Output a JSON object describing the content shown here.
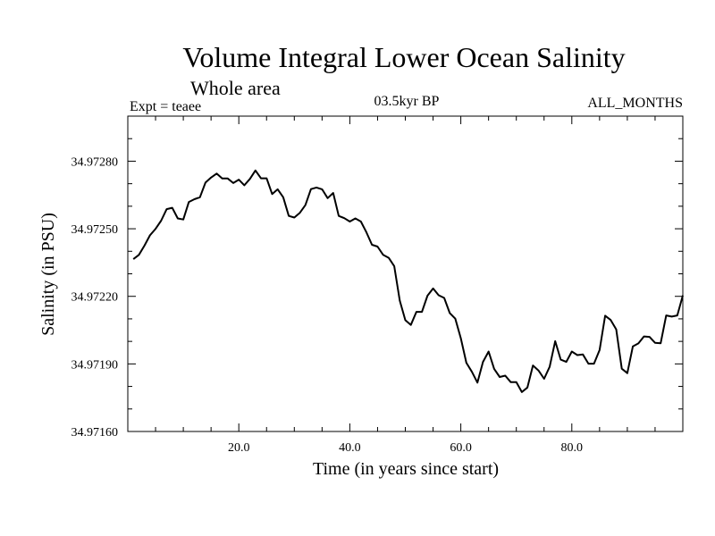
{
  "chart_data": {
    "type": "line",
    "title": "Volume Integral Lower Ocean Salinity",
    "subtitle": "Whole area",
    "experiment": "Expt = teaee",
    "period": "03.5kyr BP",
    "months": "ALL_MONTHS",
    "xlabel": "Time (in years since start)",
    "ylabel": "Salinity (in PSU)",
    "xlim": [
      0,
      100
    ],
    "ylim": [
      34.9716,
      34.973
    ],
    "x_ticks": [
      20,
      40,
      60,
      80
    ],
    "x_tick_labels": [
      "20.0",
      "40.0",
      "60.0",
      "80.0"
    ],
    "y_ticks": [
      34.9716,
      34.9719,
      34.9722,
      34.9725,
      34.9728
    ],
    "y_tick_labels": [
      "34.97160",
      "34.97190",
      "34.97220",
      "34.97250",
      "34.97280"
    ],
    "series": [
      {
        "name": "Salinity",
        "x": [
          1,
          2,
          3,
          4,
          5,
          6,
          7,
          8,
          9,
          10,
          11,
          12,
          13,
          14,
          15,
          16,
          17,
          18,
          19,
          20,
          21,
          22,
          23,
          24,
          25,
          26,
          27,
          28,
          29,
          30,
          31,
          32,
          33,
          34,
          35,
          36,
          37,
          38,
          39,
          40,
          41,
          42,
          43,
          44,
          45,
          46,
          47,
          48,
          49,
          50,
          51,
          52,
          53,
          54,
          55,
          56,
          57,
          58,
          59,
          60,
          61,
          62,
          63,
          64,
          65,
          66,
          67,
          68,
          69,
          70,
          71,
          72,
          73,
          74,
          75,
          76,
          77,
          78,
          79,
          80,
          81,
          82,
          83,
          84,
          85,
          86,
          87,
          88,
          89,
          90,
          91,
          92,
          93,
          94,
          95,
          96,
          97,
          98,
          99,
          100
        ],
        "values": [
          34.972365,
          34.972384,
          34.972425,
          34.972471,
          34.9725,
          34.972536,
          34.972587,
          34.972593,
          34.972546,
          34.972541,
          34.972619,
          34.972631,
          34.97264,
          34.972705,
          34.972727,
          34.972745,
          34.972723,
          34.972723,
          34.972703,
          34.972718,
          34.972693,
          34.972721,
          34.972759,
          34.972724,
          34.972724,
          34.972654,
          34.972675,
          34.97264,
          34.972557,
          34.97255,
          34.972571,
          34.972605,
          34.972676,
          34.972683,
          34.972675,
          34.972636,
          34.972659,
          34.972557,
          34.972547,
          34.972532,
          34.972546,
          34.972532,
          34.972484,
          34.972429,
          34.972421,
          34.972384,
          34.972371,
          34.972334,
          34.972181,
          34.972094,
          34.972073,
          34.972131,
          34.972131,
          34.972203,
          34.972235,
          34.972205,
          34.972193,
          34.972126,
          34.972101,
          34.972014,
          34.971905,
          34.971865,
          34.971817,
          34.971909,
          34.971955,
          34.971878,
          34.971842,
          34.971848,
          34.971819,
          34.971819,
          34.971775,
          34.971795,
          34.971893,
          34.971871,
          34.971834,
          34.971887,
          34.972001,
          34.971919,
          34.971909,
          34.971955,
          34.971939,
          34.971942,
          34.971901,
          34.971901,
          34.971962,
          34.972114,
          34.972095,
          34.972053,
          34.971879,
          34.971859,
          34.971978,
          34.971991,
          34.972022,
          34.97202,
          34.971994,
          34.971992,
          34.972115,
          34.97211,
          34.972115,
          34.972204
        ]
      }
    ]
  }
}
